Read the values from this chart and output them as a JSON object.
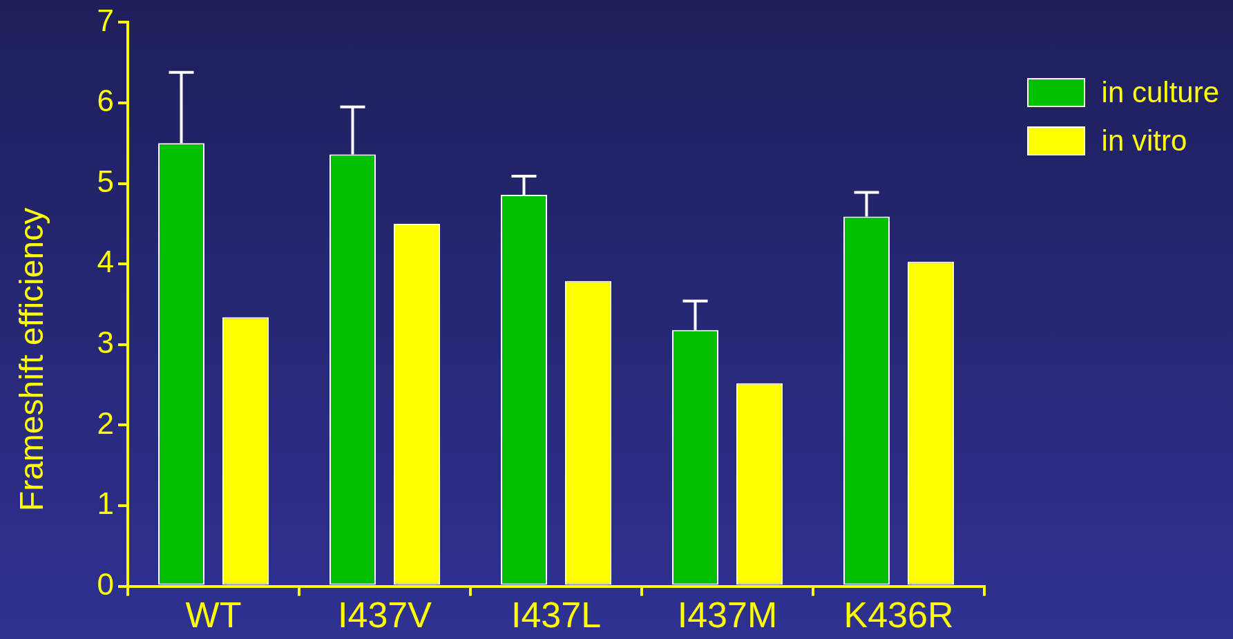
{
  "chart_data": {
    "type": "bar",
    "ylabel": "Frameshift efficiency",
    "categories": [
      "WT",
      "I437V",
      "I437L",
      "I437M",
      "K436R"
    ],
    "series": [
      {
        "name": "in culture",
        "color": "#00c000",
        "values": [
          5.5,
          5.36,
          4.86,
          3.18,
          4.59
        ],
        "errors": [
          [
            5.5,
            6.38
          ],
          [
            5.36,
            5.95
          ],
          [
            4.86,
            5.09
          ],
          [
            3.18,
            3.54
          ],
          [
            4.59,
            4.89
          ]
        ]
      },
      {
        "name": "in vitro",
        "color": "#ffff00",
        "values": [
          3.34,
          4.5,
          3.79,
          2.52,
          4.03
        ]
      }
    ],
    "ylim": [
      0,
      7
    ],
    "yticks": [
      0,
      1,
      2,
      3,
      4,
      5,
      6,
      7
    ],
    "grid": false,
    "legend": "top right"
  }
}
